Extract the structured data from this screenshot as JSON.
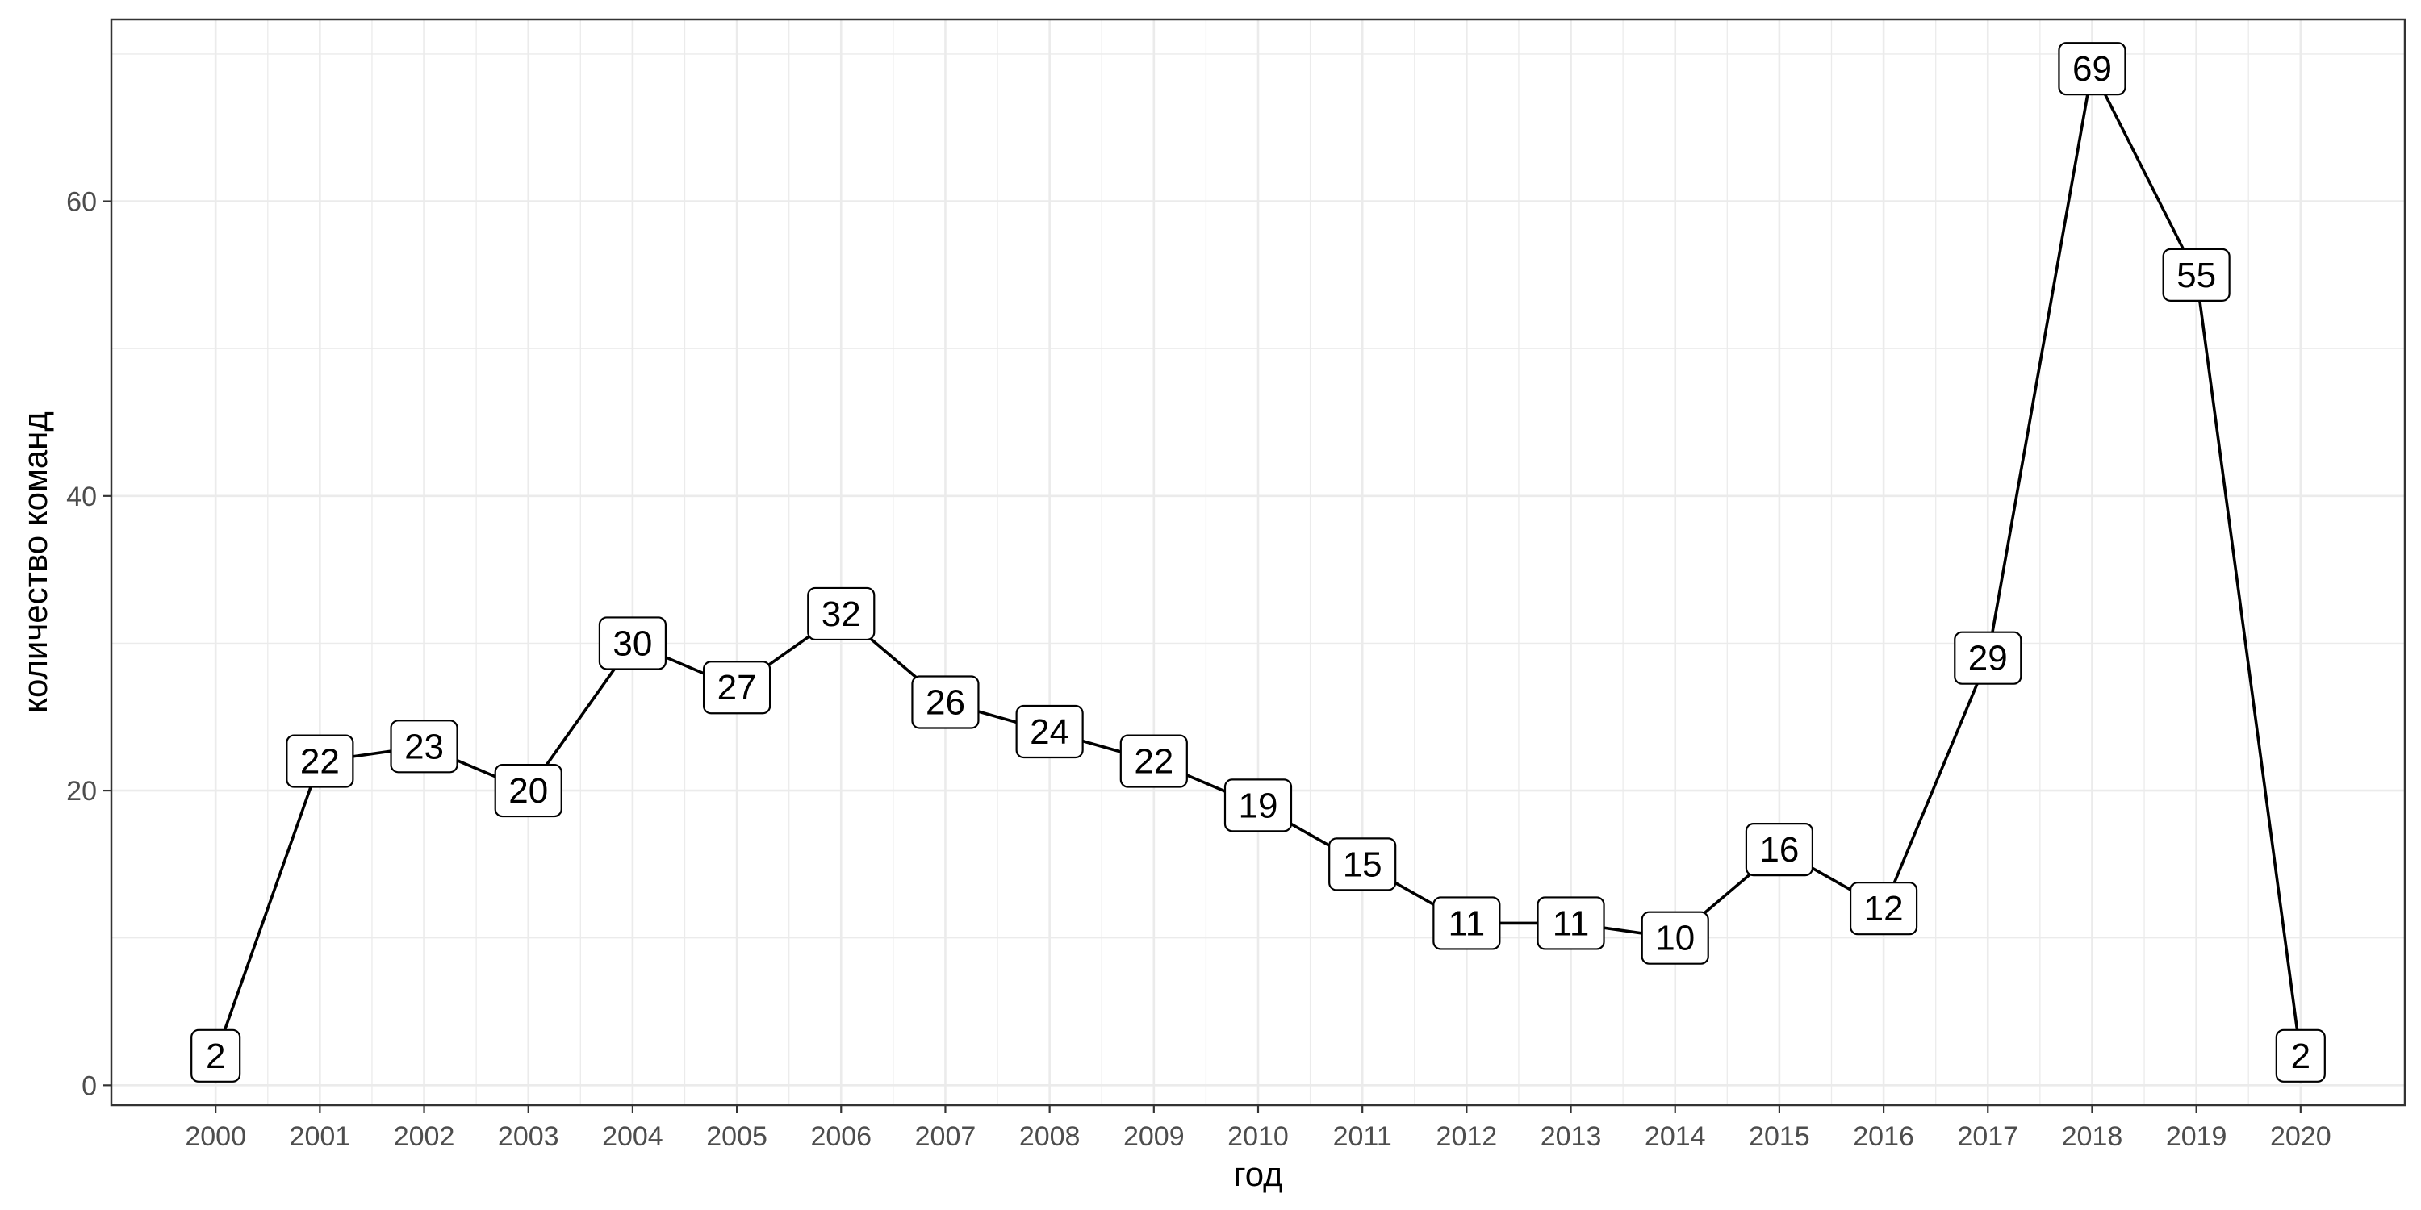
{
  "chart_data": {
    "type": "line",
    "title": "",
    "xlabel": "год",
    "ylabel": "количество команд",
    "x": [
      2000,
      2001,
      2002,
      2003,
      2004,
      2005,
      2006,
      2007,
      2008,
      2009,
      2010,
      2011,
      2012,
      2013,
      2014,
      2015,
      2016,
      2017,
      2018,
      2019,
      2020
    ],
    "y": [
      2,
      22,
      23,
      20,
      30,
      27,
      32,
      26,
      24,
      22,
      19,
      15,
      11,
      11,
      10,
      16,
      12,
      29,
      69,
      55,
      2
    ],
    "x_tick_labels": [
      "2000",
      "2001",
      "2002",
      "2003",
      "2004",
      "2005",
      "2006",
      "2007",
      "2008",
      "2009",
      "2010",
      "2011",
      "2012",
      "2013",
      "2014",
      "2015",
      "2016",
      "2017",
      "2018",
      "2019",
      "2020"
    ],
    "y_tick_labels": [
      "0",
      "20",
      "40",
      "60"
    ],
    "y_ticks": [
      0,
      20,
      40,
      60
    ],
    "y_minor_ticks": [
      10,
      30,
      50,
      70
    ],
    "xlim": [
      1999,
      2021
    ],
    "ylim": [
      -1.35,
      72.35
    ],
    "grid": true,
    "legend": "none",
    "data_labels": true,
    "line_color": "#000000",
    "grid_color": "#ebebeb",
    "panel_border_color": "#333333"
  }
}
